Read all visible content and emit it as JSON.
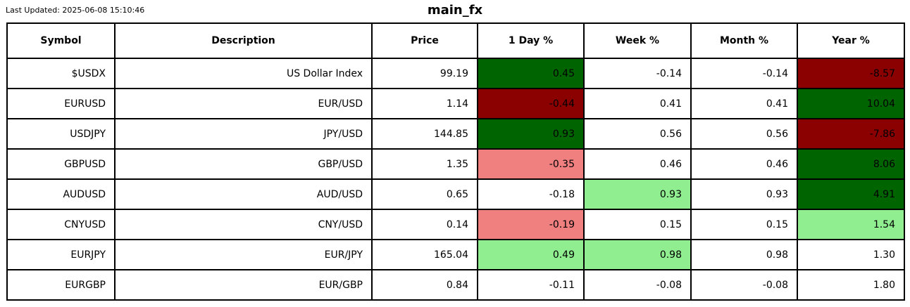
{
  "header": {
    "last_updated": "Last Updated: 2025-06-08 15:10:46",
    "title": "main_fx"
  },
  "colors": {
    "strong_up": "#006400",
    "mild_up": "#90ee90",
    "strong_down": "#8b0000",
    "mild_down": "#f08080",
    "neutral": "#ffffff",
    "border": "#000000",
    "text": "#000000"
  },
  "table": {
    "columns": [
      "Symbol",
      "Description",
      "Price",
      "1 Day %",
      "Week %",
      "Month %",
      "Year %"
    ],
    "rows": [
      {
        "symbol": "$USDX",
        "description": "US Dollar Index",
        "price": "99.19",
        "changes": [
          {
            "period": "day",
            "value": "0.45",
            "bg": "#006400"
          },
          {
            "period": "week",
            "value": "-0.14",
            "bg": "#ffffff"
          },
          {
            "period": "month",
            "value": "-0.14",
            "bg": "#ffffff"
          },
          {
            "period": "year",
            "value": "-8.57",
            "bg": "#8b0000"
          }
        ]
      },
      {
        "symbol": "EURUSD",
        "description": "EUR/USD",
        "price": "1.14",
        "changes": [
          {
            "period": "day",
            "value": "-0.44",
            "bg": "#8b0000"
          },
          {
            "period": "week",
            "value": "0.41",
            "bg": "#ffffff"
          },
          {
            "period": "month",
            "value": "0.41",
            "bg": "#ffffff"
          },
          {
            "period": "year",
            "value": "10.04",
            "bg": "#006400"
          }
        ]
      },
      {
        "symbol": "USDJPY",
        "description": "JPY/USD",
        "price": "144.85",
        "changes": [
          {
            "period": "day",
            "value": "0.93",
            "bg": "#006400"
          },
          {
            "period": "week",
            "value": "0.56",
            "bg": "#ffffff"
          },
          {
            "period": "month",
            "value": "0.56",
            "bg": "#ffffff"
          },
          {
            "period": "year",
            "value": "-7.86",
            "bg": "#8b0000"
          }
        ]
      },
      {
        "symbol": "GBPUSD",
        "description": "GBP/USD",
        "price": "1.35",
        "changes": [
          {
            "period": "day",
            "value": "-0.35",
            "bg": "#f08080"
          },
          {
            "period": "week",
            "value": "0.46",
            "bg": "#ffffff"
          },
          {
            "period": "month",
            "value": "0.46",
            "bg": "#ffffff"
          },
          {
            "period": "year",
            "value": "8.06",
            "bg": "#006400"
          }
        ]
      },
      {
        "symbol": "AUDUSD",
        "description": "AUD/USD",
        "price": "0.65",
        "changes": [
          {
            "period": "day",
            "value": "-0.18",
            "bg": "#ffffff"
          },
          {
            "period": "week",
            "value": "0.93",
            "bg": "#90ee90"
          },
          {
            "period": "month",
            "value": "0.93",
            "bg": "#ffffff"
          },
          {
            "period": "year",
            "value": "4.91",
            "bg": "#006400"
          }
        ]
      },
      {
        "symbol": "CNYUSD",
        "description": "CNY/USD",
        "price": "0.14",
        "changes": [
          {
            "period": "day",
            "value": "-0.19",
            "bg": "#f08080"
          },
          {
            "period": "week",
            "value": "0.15",
            "bg": "#ffffff"
          },
          {
            "period": "month",
            "value": "0.15",
            "bg": "#ffffff"
          },
          {
            "period": "year",
            "value": "1.54",
            "bg": "#90ee90"
          }
        ]
      },
      {
        "symbol": "EURJPY",
        "description": "EUR/JPY",
        "price": "165.04",
        "changes": [
          {
            "period": "day",
            "value": "0.49",
            "bg": "#90ee90"
          },
          {
            "period": "week",
            "value": "0.98",
            "bg": "#90ee90"
          },
          {
            "period": "month",
            "value": "0.98",
            "bg": "#ffffff"
          },
          {
            "period": "year",
            "value": "1.30",
            "bg": "#ffffff"
          }
        ]
      },
      {
        "symbol": "EURGBP",
        "description": "EUR/GBP",
        "price": "0.84",
        "changes": [
          {
            "period": "day",
            "value": "-0.11",
            "bg": "#ffffff"
          },
          {
            "period": "week",
            "value": "-0.08",
            "bg": "#ffffff"
          },
          {
            "period": "month",
            "value": "-0.08",
            "bg": "#ffffff"
          },
          {
            "period": "year",
            "value": "1.80",
            "bg": "#ffffff"
          }
        ]
      }
    ]
  }
}
